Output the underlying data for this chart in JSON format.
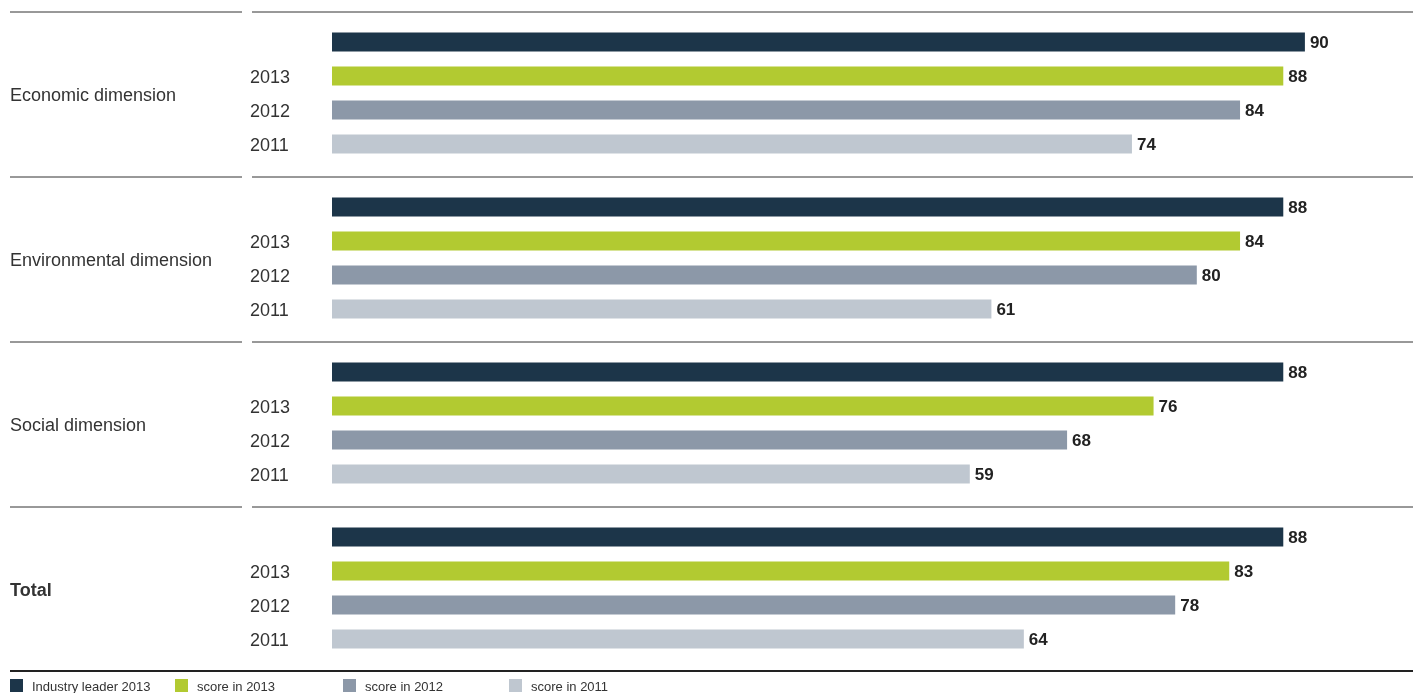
{
  "chart_data": {
    "type": "bar",
    "orientation": "horizontal",
    "categories": [
      "Economic dimension",
      "Environmental dimension",
      "Social dimension",
      "Total"
    ],
    "series": [
      {
        "name": "Industry leader 2013",
        "color": "#1c3549",
        "values": [
          90,
          88,
          88,
          88
        ]
      },
      {
        "name": "score in 2013",
        "color": "#b2ca31",
        "values": [
          88,
          84,
          76,
          83
        ]
      },
      {
        "name": "score in 2012",
        "color": "#8c98a8",
        "values": [
          84,
          80,
          68,
          78
        ]
      },
      {
        "name": "score in 2011",
        "color": "#bfc7d0",
        "values": [
          74,
          61,
          59,
          64
        ]
      }
    ],
    "xlim": [
      0,
      100
    ],
    "tick_labels": "y",
    "data_labels": true,
    "legend": "bottom",
    "annotations": [
      "2013",
      "2012",
      "2011",
      "2013",
      "2012",
      "2011",
      "2013",
      "2012",
      "2011",
      "2013",
      "2012",
      "2011"
    ]
  }
}
